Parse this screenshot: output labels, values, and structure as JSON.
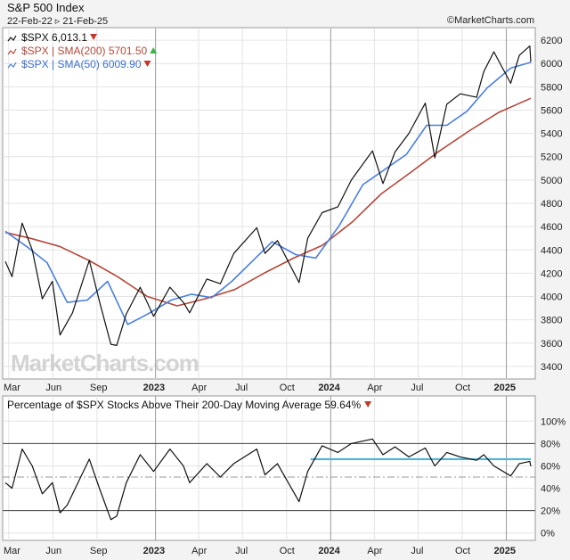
{
  "header": {
    "title": "S&P 500 Index",
    "date_range": "22-Feb-22 ▹ 21-Feb-25",
    "brand": "©MarketCharts.com"
  },
  "watermark": "MarketCharts.com",
  "colors": {
    "price": "#111111",
    "sma200": "#b5483a",
    "sma50": "#4a7fe0",
    "breadth": "#111111",
    "breadth_level": "#4ab5dc",
    "down_marker": "#c0392b",
    "up_marker": "#3fb24a"
  },
  "chart_data": [
    {
      "type": "line",
      "x_ticks": [
        "Mar",
        "Jun",
        "Sep",
        "2023",
        "Apr",
        "Jul",
        "Oct",
        "2024",
        "Apr",
        "Jul",
        "Oct",
        "2025"
      ],
      "ylim": [
        3300,
        6300
      ],
      "y_ticks": [
        3400,
        3600,
        3800,
        4000,
        4200,
        4400,
        4600,
        4800,
        5000,
        5200,
        5400,
        5600,
        5800,
        6000,
        6200
      ],
      "grid": true,
      "legend_position": "top-left",
      "legend": [
        {
          "label": "$SPX 6,013.1",
          "marker": "down"
        },
        {
          "label": "$SPX | SMA(200) 5701.50",
          "marker": "up"
        },
        {
          "label": "$SPX | SMA(50) 6009.90",
          "marker": "down"
        }
      ],
      "series": [
        {
          "name": "$SPX",
          "x": [
            "2022-02-22",
            "2022-03-08",
            "2022-03-29",
            "2022-04-19",
            "2022-05-10",
            "2022-05-31",
            "2022-06-16",
            "2022-07-12",
            "2022-08-16",
            "2022-09-06",
            "2022-09-30",
            "2022-10-12",
            "2022-11-01",
            "2022-11-30",
            "2022-12-28",
            "2023-01-31",
            "2023-02-28",
            "2023-03-13",
            "2023-04-18",
            "2023-05-16",
            "2023-06-13",
            "2023-07-31",
            "2023-08-17",
            "2023-09-12",
            "2023-10-27",
            "2023-11-14",
            "2023-12-14",
            "2024-01-16",
            "2024-02-13",
            "2024-03-28",
            "2024-04-19",
            "2024-05-14",
            "2024-06-12",
            "2024-07-16",
            "2024-08-05",
            "2024-08-30",
            "2024-09-27",
            "2024-10-31",
            "2024-11-15",
            "2024-12-06",
            "2025-01-10",
            "2025-01-28",
            "2025-02-19",
            "2025-02-21"
          ],
          "values": [
            4300,
            4170,
            4630,
            4400,
            3980,
            4130,
            3670,
            3860,
            4310,
            3960,
            3590,
            3580,
            3850,
            4080,
            3830,
            4080,
            3950,
            3860,
            4150,
            4110,
            4370,
            4590,
            4370,
            4480,
            4120,
            4500,
            4720,
            4770,
            5000,
            5250,
            4970,
            5240,
            5400,
            5660,
            5190,
            5650,
            5740,
            5710,
            5930,
            6100,
            5830,
            6070,
            6150,
            6013
          ]
        },
        {
          "name": "$SPX | SMA(200)",
          "x": [
            "2022-02-22",
            "2022-04-15",
            "2022-06-15",
            "2022-08-15",
            "2022-10-14",
            "2022-12-15",
            "2023-02-15",
            "2023-04-14",
            "2023-06-15",
            "2023-08-15",
            "2023-10-16",
            "2023-12-15",
            "2024-02-15",
            "2024-04-15",
            "2024-06-14",
            "2024-08-15",
            "2024-10-15",
            "2024-12-16",
            "2025-02-21"
          ],
          "values": [
            4550,
            4500,
            4430,
            4310,
            4170,
            4000,
            3920,
            3980,
            4060,
            4200,
            4330,
            4440,
            4640,
            4880,
            5060,
            5250,
            5420,
            5580,
            5701.5
          ]
        },
        {
          "name": "$SPX | SMA(50)",
          "x": [
            "2022-02-22",
            "2022-04-07",
            "2022-05-20",
            "2022-07-01",
            "2022-08-12",
            "2022-09-23",
            "2022-11-04",
            "2022-12-16",
            "2023-02-03",
            "2023-03-17",
            "2023-04-28",
            "2023-06-09",
            "2023-07-21",
            "2023-09-01",
            "2023-10-20",
            "2023-12-01",
            "2024-01-19",
            "2024-03-08",
            "2024-04-26",
            "2024-06-07",
            "2024-07-19",
            "2024-08-30",
            "2024-10-11",
            "2024-11-22",
            "2025-01-10",
            "2025-02-21"
          ],
          "values": [
            4560,
            4430,
            4290,
            3950,
            3970,
            4130,
            3760,
            3850,
            3970,
            4020,
            3990,
            4130,
            4300,
            4470,
            4360,
            4330,
            4610,
            4960,
            5100,
            5220,
            5470,
            5470,
            5590,
            5790,
            5960,
            6009.9
          ]
        }
      ]
    },
    {
      "type": "line",
      "title": "Percentage of $SPX Stocks Above Their 200-Day Moving Average 59.64%",
      "x_ticks": [
        "Mar",
        "Jun",
        "Sep",
        "2023",
        "Apr",
        "Jul",
        "Oct",
        "2024",
        "Apr",
        "Jul",
        "Oct",
        "2025"
      ],
      "ylim": [
        -5,
        105
      ],
      "y_ticks": [
        "0%",
        "20%",
        "40%",
        "60%",
        "80%",
        "100%"
      ],
      "grid": true,
      "reference_lines": [
        20,
        50,
        80
      ],
      "horizontal_level": {
        "value": 66,
        "from": "2023-11-20",
        "to": "2025-02-21"
      },
      "series": [
        {
          "name": "Percentage of $SPX Stocks Above Their 200-Day Moving Average",
          "x": [
            "2022-02-22",
            "2022-03-08",
            "2022-03-29",
            "2022-04-19",
            "2022-05-10",
            "2022-05-31",
            "2022-06-16",
            "2022-07-01",
            "2022-08-16",
            "2022-09-06",
            "2022-09-30",
            "2022-10-12",
            "2022-11-01",
            "2022-11-30",
            "2022-12-28",
            "2023-01-31",
            "2023-02-28",
            "2023-03-13",
            "2023-04-18",
            "2023-05-16",
            "2023-06-13",
            "2023-07-31",
            "2023-08-17",
            "2023-09-12",
            "2023-10-27",
            "2023-11-14",
            "2023-12-14",
            "2024-01-16",
            "2024-02-13",
            "2024-03-28",
            "2024-04-19",
            "2024-05-14",
            "2024-06-12",
            "2024-07-16",
            "2024-08-05",
            "2024-08-30",
            "2024-09-27",
            "2024-10-31",
            "2024-11-15",
            "2024-12-06",
            "2025-01-10",
            "2025-01-28",
            "2025-02-19",
            "2025-02-21"
          ],
          "values": [
            45,
            40,
            75,
            60,
            35,
            45,
            18,
            25,
            66,
            40,
            12,
            15,
            45,
            70,
            55,
            75,
            60,
            45,
            62,
            50,
            62,
            75,
            52,
            62,
            28,
            55,
            78,
            72,
            80,
            84,
            70,
            77,
            68,
            76,
            60,
            72,
            68,
            65,
            70,
            60,
            51,
            62,
            64,
            59.64
          ]
        }
      ]
    }
  ]
}
